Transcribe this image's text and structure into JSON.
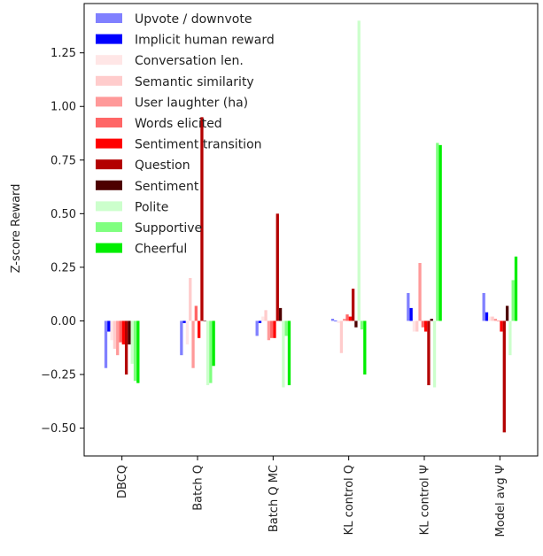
{
  "chart_data": {
    "type": "bar",
    "title": "",
    "xlabel": "",
    "ylabel": "Z-score Reward",
    "ylim": [
      -0.63,
      1.48
    ],
    "yticks": [
      -0.5,
      -0.25,
      0.0,
      0.25,
      0.5,
      0.75,
      1.0,
      1.25
    ],
    "ytick_labels": [
      "−0.50",
      "−0.25",
      "0.00",
      "0.25",
      "0.50",
      "0.75",
      "1.00",
      "1.25"
    ],
    "grid": false,
    "legend_position": "top-left",
    "categories": [
      "DBCQ",
      "Batch Q",
      "Batch Q MC",
      "KL control Q",
      "KL control Ψ",
      "Model avg Ψ"
    ],
    "series": [
      {
        "name": "Upvote / downvote",
        "color": "#8080ff",
        "values": [
          -0.22,
          -0.16,
          -0.07,
          0.01,
          0.13,
          0.13
        ]
      },
      {
        "name": "Implicit human reward",
        "color": "#0000ff",
        "values": [
          -0.05,
          -0.01,
          -0.01,
          0.0,
          0.06,
          0.04
        ]
      },
      {
        "name": "Conversation len.",
        "color": "#ffe6e6",
        "values": [
          -0.09,
          -0.11,
          0.02,
          -0.01,
          -0.05,
          0.02
        ]
      },
      {
        "name": "Semantic similarity",
        "color": "#ffcccc",
        "values": [
          -0.13,
          0.2,
          0.05,
          -0.15,
          -0.05,
          0.02
        ]
      },
      {
        "name": "User laughter (ha)",
        "color": "#ff9999",
        "values": [
          -0.16,
          -0.22,
          -0.09,
          0.01,
          0.27,
          0.01
        ]
      },
      {
        "name": "Words elicited",
        "color": "#ff6666",
        "values": [
          -0.1,
          0.07,
          -0.08,
          0.03,
          -0.03,
          0.0
        ]
      },
      {
        "name": "Sentiment transition",
        "color": "#ff0000",
        "values": [
          -0.11,
          -0.08,
          -0.08,
          0.02,
          -0.05,
          -0.05
        ]
      },
      {
        "name": "Question",
        "color": "#b30000",
        "values": [
          -0.25,
          0.95,
          0.5,
          0.15,
          -0.3,
          -0.52
        ]
      },
      {
        "name": "Sentiment",
        "color": "#4d0000",
        "values": [
          -0.11,
          0.0,
          0.06,
          -0.03,
          0.01,
          0.07
        ]
      },
      {
        "name": "Polite",
        "color": "#ccffcc",
        "values": [
          -0.2,
          -0.3,
          -0.31,
          1.4,
          -0.31,
          -0.16
        ]
      },
      {
        "name": "Supportive",
        "color": "#80ff80",
        "values": [
          -0.28,
          -0.29,
          -0.07,
          -0.04,
          0.83,
          0.19
        ]
      },
      {
        "name": "Cheerful",
        "color": "#00ee00",
        "values": [
          -0.29,
          -0.21,
          -0.3,
          -0.25,
          0.82,
          0.3
        ]
      }
    ]
  }
}
